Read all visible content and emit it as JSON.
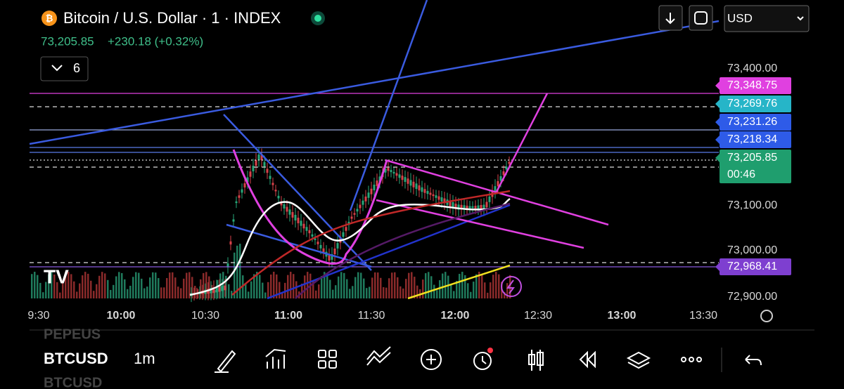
{
  "header": {
    "title": "Bitcoin / U.S. Dollar · 1 · INDEX",
    "price": "73,205.85",
    "change": "+230.18 (+0.32%)"
  },
  "indicators_button": "6",
  "currency": "USD",
  "price_axis": [
    "73,400.00",
    "73,100.00",
    "73,000.00",
    "72,900.00"
  ],
  "price_tags": [
    {
      "label": "73,348.75",
      "color": "#e040e0"
    },
    {
      "label": "73,269.76",
      "color": "#26b5c8"
    },
    {
      "label": "73,231.26",
      "color": "#2e5be8"
    },
    {
      "label": "73,218.34",
      "color": "#2e5be8"
    },
    {
      "label": "73,205.85",
      "sub": "00:46",
      "color": "#1f9e6e"
    },
    {
      "label": "72,968.41",
      "color": "#7e3fd0"
    }
  ],
  "time_axis": [
    "9:30",
    "10:00",
    "10:30",
    "11:00",
    "11:30",
    "12:00",
    "12:30",
    "13:00",
    "13:30"
  ],
  "watchlist": [
    "PEPEUS",
    "BTCUSD"
  ],
  "toolbar": {
    "symbol": "BTCUSD",
    "interval": "1m"
  }
}
